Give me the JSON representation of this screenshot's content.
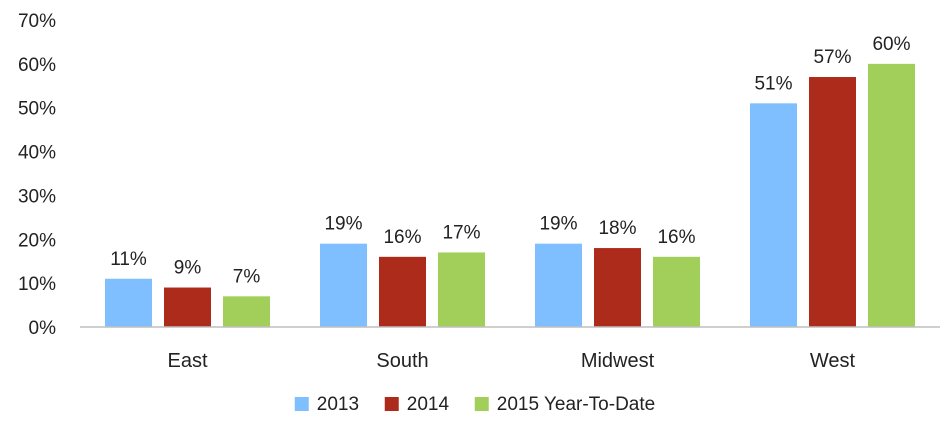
{
  "chart_data": {
    "type": "bar",
    "title": "",
    "xlabel": "",
    "ylabel": "",
    "categories": [
      "East",
      "South",
      "Midwest",
      "West"
    ],
    "series": [
      {
        "name": "2013",
        "values": [
          11,
          19,
          19,
          51
        ],
        "labels": [
          "11%",
          "19%",
          "19%",
          "51%"
        ],
        "color": "#7fbfff"
      },
      {
        "name": "2014",
        "values": [
          9,
          16,
          18,
          57
        ],
        "labels": [
          "9%",
          "16%",
          "18%",
          "57%"
        ],
        "color": "#ad2b1b"
      },
      {
        "name": "2015 Year-To-Date",
        "values": [
          7,
          17,
          16,
          60
        ],
        "labels": [
          "7%",
          "17%",
          "16%",
          "60%"
        ],
        "color": "#a1cf59"
      }
    ],
    "ylim": [
      0,
      70
    ],
    "yticks": [
      0,
      10,
      20,
      30,
      40,
      50,
      60,
      70
    ],
    "ytick_labels": [
      "0%",
      "10%",
      "20%",
      "30%",
      "40%",
      "50%",
      "60%",
      "70%"
    ],
    "grid": false,
    "legend_position": "bottom"
  }
}
